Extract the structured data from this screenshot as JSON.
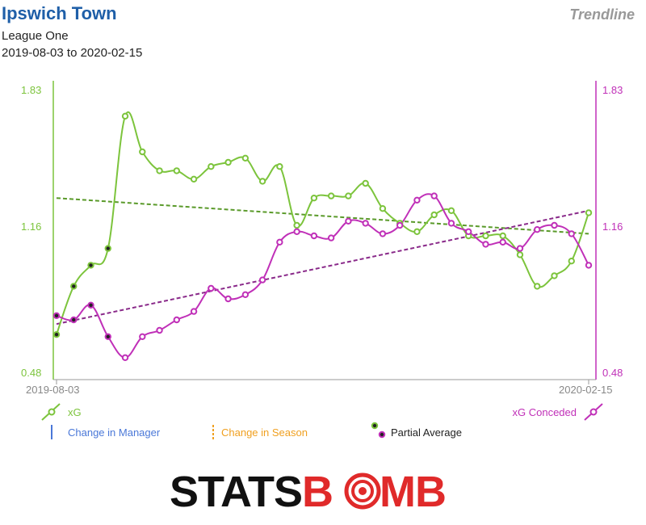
{
  "header": {
    "team": "Ipswich Town",
    "league": "League One",
    "date_range": "2019-08-03 to 2020-02-15",
    "view_label": "Trendline"
  },
  "colors": {
    "xg": "#7cc43c",
    "xg_trend": "#5a9a2a",
    "conceded": "#c030b8",
    "conceded_trend": "#8a2a8a",
    "manager": "#4a78d8",
    "season": "#f0a020",
    "axis": "#999999"
  },
  "legend": {
    "xg": "xG",
    "conceded": "xG Conceded",
    "manager": "Change in Manager",
    "season": "Change in Season",
    "partial": "Partial Average"
  },
  "logo": {
    "part1": "STATS",
    "part2": "B",
    "part3": "MB"
  },
  "chart_data": {
    "type": "line",
    "x_labels": [
      "2019-08-03",
      "2020-02-15"
    ],
    "y_left": {
      "ticks": [
        "1.83",
        "1.16",
        "0.48"
      ],
      "range": [
        0.48,
        1.83
      ]
    },
    "y_right": {
      "ticks": [
        "1.83",
        "1.16",
        "0.48"
      ],
      "range": [
        0.48,
        1.83
      ]
    },
    "partial_count": 4,
    "series": [
      {
        "name": "xG",
        "values": [
          0.66,
          0.89,
          0.99,
          1.07,
          1.7,
          1.53,
          1.44,
          1.44,
          1.4,
          1.46,
          1.48,
          1.5,
          1.39,
          1.46,
          1.18,
          1.31,
          1.32,
          1.32,
          1.38,
          1.26,
          1.19,
          1.15,
          1.23,
          1.25,
          1.13,
          1.13,
          1.13,
          1.04,
          0.89,
          0.94,
          1.01,
          1.24
        ],
        "trend": [
          1.31,
          1.14
        ]
      },
      {
        "name": "xG Conceded",
        "values": [
          0.75,
          0.73,
          0.8,
          0.65,
          0.55,
          0.65,
          0.68,
          0.73,
          0.77,
          0.88,
          0.83,
          0.85,
          0.92,
          1.1,
          1.15,
          1.13,
          1.12,
          1.2,
          1.19,
          1.14,
          1.18,
          1.3,
          1.32,
          1.19,
          1.15,
          1.09,
          1.1,
          1.07,
          1.16,
          1.18,
          1.14,
          0.99
        ],
        "trend": [
          0.71,
          1.25
        ]
      }
    ]
  }
}
